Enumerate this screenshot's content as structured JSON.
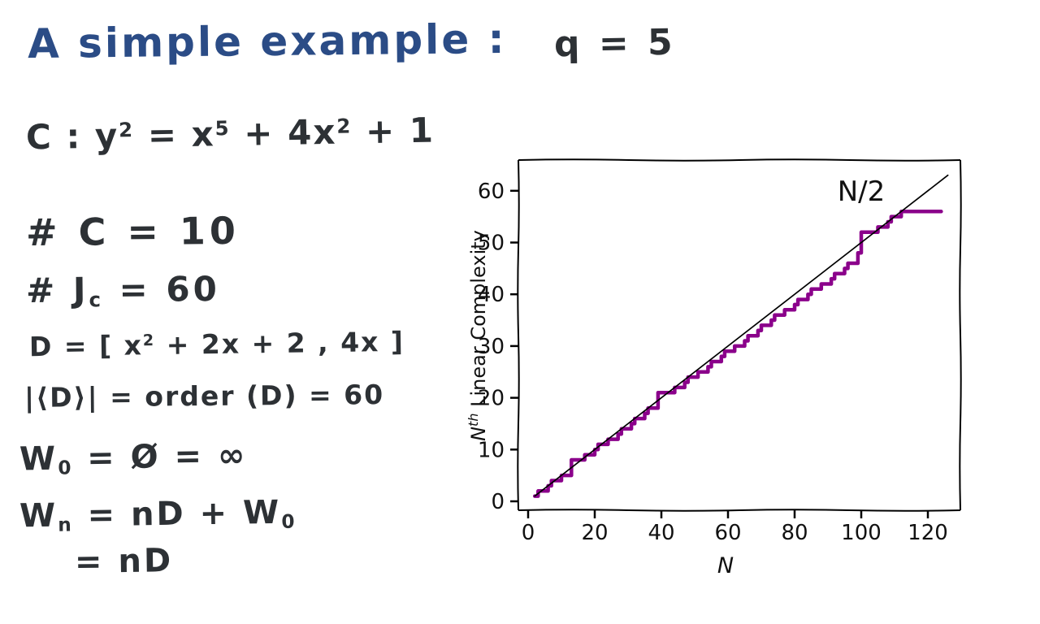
{
  "title": {
    "main": "A simple example :",
    "suffix": "q = 5"
  },
  "notes": {
    "lines": [
      {
        "name": "curve-equation",
        "segments": [
          {
            "t": "C : y"
          },
          {
            "t": "2",
            "v": "sup"
          },
          {
            "t": " = x"
          },
          {
            "t": "5",
            "v": "sup"
          },
          {
            "t": " + 4x"
          },
          {
            "t": "2",
            "v": "sup"
          },
          {
            "t": " + 1"
          }
        ]
      },
      {
        "name": "point-count",
        "segments": [
          {
            "t": "# C = 10"
          }
        ]
      },
      {
        "name": "jacobian-order",
        "segments": [
          {
            "t": "# J"
          },
          {
            "t": "c",
            "v": "sub"
          },
          {
            "t": " = 60"
          }
        ]
      },
      {
        "name": "divisor-definition",
        "segments": [
          {
            "t": "D = [ x"
          },
          {
            "t": "2",
            "v": "sup"
          },
          {
            "t": " + 2x + 2 , 4x ]"
          }
        ]
      },
      {
        "name": "divisor-order",
        "segments": [
          {
            "t": "|⟨D⟩| = order (D) = 60"
          }
        ]
      },
      {
        "name": "w0-definition",
        "segments": [
          {
            "t": "W"
          },
          {
            "t": "0",
            "v": "sub"
          },
          {
            "t": " = Ø = ∞"
          }
        ]
      },
      {
        "name": "wn-definition",
        "segments": [
          {
            "t": "W"
          },
          {
            "t": "n",
            "v": "sub"
          },
          {
            "t": " = nD + W"
          },
          {
            "t": "0",
            "v": "sub"
          }
        ]
      },
      {
        "name": "wn-simplified",
        "segments": [
          {
            "t": "= nD"
          }
        ]
      }
    ]
  },
  "chart_data": {
    "type": "line",
    "title": "",
    "xlabel": "N",
    "ylabel": "Nᵗʰ Linear Complexity",
    "ylabel_segments": [
      {
        "t": "N",
        "i": true
      },
      {
        "t": "th",
        "v": "sup",
        "i": true
      },
      {
        "t": " Linear Complexity"
      }
    ],
    "x_ticks": [
      0,
      20,
      40,
      60,
      80,
      100,
      120
    ],
    "y_ticks": [
      0,
      10,
      20,
      30,
      40,
      50,
      60
    ],
    "xlim": [
      -3,
      130
    ],
    "ylim": [
      -2,
      66
    ],
    "grid": false,
    "legend": "none",
    "annotation": {
      "text": "N/2",
      "x": 100,
      "y": 60
    },
    "series": [
      {
        "name": "nth-linear-complexity-profile",
        "color": "#8B008B",
        "width": 4.5,
        "style": "step",
        "points": [
          [
            2,
            1
          ],
          [
            3,
            2
          ],
          [
            5,
            2
          ],
          [
            6,
            3
          ],
          [
            7,
            4
          ],
          [
            9,
            4
          ],
          [
            10,
            5
          ],
          [
            13,
            5
          ],
          [
            13,
            8
          ],
          [
            16,
            8
          ],
          [
            17,
            9
          ],
          [
            19,
            9
          ],
          [
            20,
            10
          ],
          [
            21,
            11
          ],
          [
            23,
            11
          ],
          [
            24,
            12
          ],
          [
            26,
            12
          ],
          [
            27,
            13
          ],
          [
            28,
            14
          ],
          [
            30,
            14
          ],
          [
            31,
            15
          ],
          [
            32,
            16
          ],
          [
            34,
            16
          ],
          [
            35,
            17
          ],
          [
            36,
            18
          ],
          [
            39,
            18
          ],
          [
            39,
            21
          ],
          [
            43,
            21
          ],
          [
            44,
            22
          ],
          [
            46,
            22
          ],
          [
            47,
            23
          ],
          [
            48,
            24
          ],
          [
            50,
            24
          ],
          [
            51,
            25
          ],
          [
            53,
            25
          ],
          [
            54,
            26
          ],
          [
            55,
            27
          ],
          [
            57,
            27
          ],
          [
            58,
            28
          ],
          [
            59,
            29
          ],
          [
            61,
            29
          ],
          [
            62,
            30
          ],
          [
            64,
            30
          ],
          [
            65,
            31
          ],
          [
            66,
            32
          ],
          [
            68,
            32
          ],
          [
            69,
            33
          ],
          [
            70,
            34
          ],
          [
            72,
            34
          ],
          [
            73,
            35
          ],
          [
            74,
            36
          ],
          [
            76,
            36
          ],
          [
            77,
            37
          ],
          [
            79,
            37
          ],
          [
            80,
            38
          ],
          [
            81,
            39
          ],
          [
            83,
            39
          ],
          [
            84,
            40
          ],
          [
            85,
            41
          ],
          [
            87,
            41
          ],
          [
            88,
            42
          ],
          [
            90,
            42
          ],
          [
            91,
            43
          ],
          [
            92,
            44
          ],
          [
            94,
            44
          ],
          [
            95,
            45
          ],
          [
            96,
            46
          ],
          [
            98,
            46
          ],
          [
            99,
            48
          ],
          [
            100,
            48
          ],
          [
            100,
            52
          ],
          [
            104,
            52
          ],
          [
            105,
            53
          ],
          [
            107,
            53
          ],
          [
            108,
            54
          ],
          [
            109,
            55
          ],
          [
            111,
            55
          ],
          [
            112,
            56
          ],
          [
            124,
            56
          ]
        ]
      },
      {
        "name": "n-over-2-reference",
        "color": "#000000",
        "width": 1.7,
        "style": "line",
        "points": [
          [
            2,
            1
          ],
          [
            126,
            63
          ]
        ]
      }
    ]
  },
  "colors": {
    "ink": "#2d3135",
    "title_blue": "#2b4c86",
    "profile_purple": "#8B008B"
  }
}
